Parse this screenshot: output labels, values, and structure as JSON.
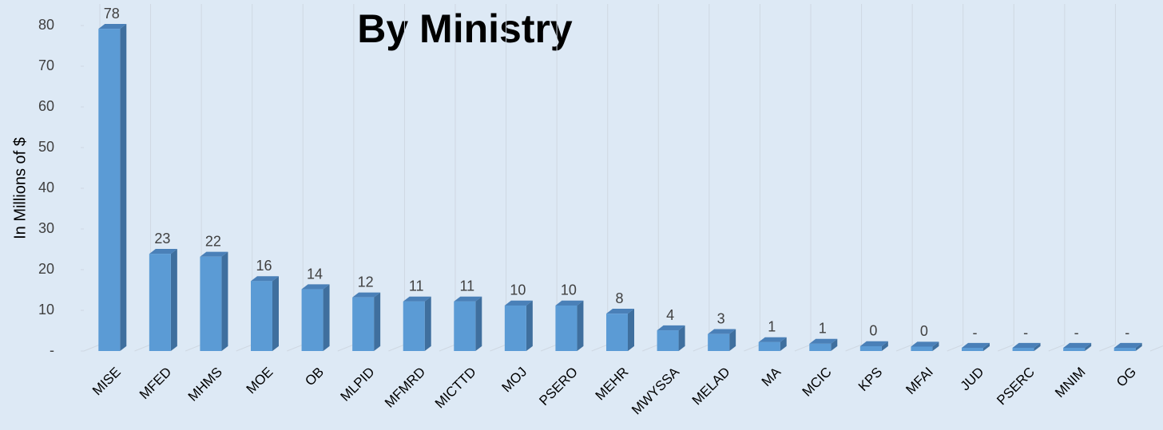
{
  "chart_data": {
    "type": "bar3d",
    "title": "By Ministry",
    "y_label": "In Millions of $",
    "categories": [
      "MISE",
      "MFED",
      "MHMS",
      "MOE",
      "OB",
      "MLPID",
      "MFMRD",
      "MICTTD",
      "MOJ",
      "PSERO",
      "MEHR",
      "MWYSSA",
      "MELAD",
      "MA",
      "MCIC",
      "KPS",
      "MFAI",
      "JUD",
      "PSERC",
      "MNIM",
      "OG"
    ],
    "values": [
      78.4,
      23.1,
      22.4,
      16.4,
      14.4,
      12.4,
      11.4,
      11.4,
      10.4,
      10.4,
      8.4,
      4.3,
      3.4,
      1.4,
      1.0,
      0.4,
      0.3,
      0,
      0,
      0,
      0
    ],
    "value_labels": [
      "78",
      "23",
      "22",
      "16",
      "14",
      "12",
      "11",
      "11",
      "10",
      "10",
      "8",
      "4",
      "3",
      "1",
      "1",
      "0",
      "0",
      "-",
      "-",
      "-",
      "-"
    ],
    "color": "#5b9bd5",
    "ylim": [
      0,
      86
    ],
    "yticks": [
      {
        "value": 0,
        "label": "-"
      },
      10,
      20,
      30,
      40,
      50,
      60,
      70,
      80
    ]
  }
}
